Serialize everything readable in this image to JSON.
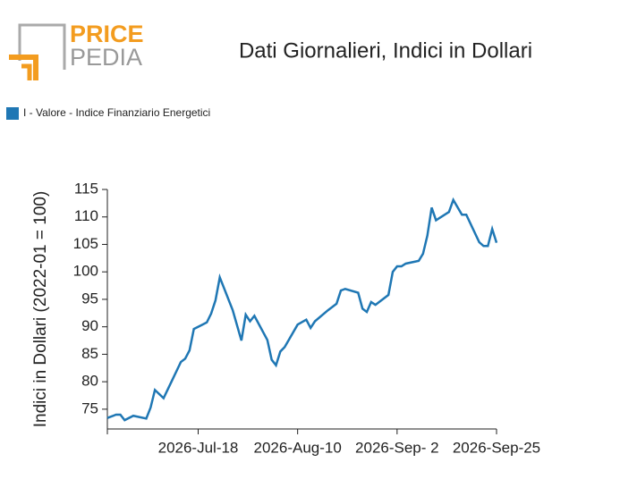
{
  "logo": {
    "top": "PRICE",
    "bottom": "PEDIA"
  },
  "chart_data": {
    "type": "line",
    "title": "Dati Giornalieri, Indici in Dollari",
    "y_label": "Indici in Dollari (2022-01 = 100)",
    "legend": "top-left",
    "x": [
      "2026-06-27",
      "2026-06-29",
      "2026-06-30",
      "2026-07-01",
      "2026-07-03",
      "2026-07-06",
      "2026-07-07",
      "2026-07-08",
      "2026-07-10",
      "2026-07-12",
      "2026-07-14",
      "2026-07-15",
      "2026-07-16",
      "2026-07-17",
      "2026-07-19",
      "2026-07-20",
      "2026-07-21",
      "2026-07-22",
      "2026-07-23",
      "2026-07-26",
      "2026-07-28",
      "2026-07-29",
      "2026-07-30",
      "2026-07-31",
      "2026-08-03",
      "2026-08-04",
      "2026-08-05",
      "2026-08-06",
      "2026-08-07",
      "2026-08-10",
      "2026-08-12",
      "2026-08-13",
      "2026-08-14",
      "2026-08-17",
      "2026-08-19",
      "2026-08-20",
      "2026-08-21",
      "2026-08-24",
      "2026-08-25",
      "2026-08-26",
      "2026-08-27",
      "2026-08-28",
      "2026-08-31",
      "2026-09-01",
      "2026-09-02",
      "2026-09-03",
      "2026-09-04",
      "2026-09-07",
      "2026-09-08",
      "2026-09-09",
      "2026-09-10",
      "2026-09-11",
      "2026-09-14",
      "2026-09-15",
      "2026-09-17",
      "2026-09-18",
      "2026-09-21",
      "2026-09-22",
      "2026-09-23",
      "2026-09-24",
      "2026-09-25"
    ],
    "series": [
      {
        "name": "I - Valore - Indice Finanziario Energetici",
        "color": "#1f77b4",
        "values": [
          73.4,
          74.0,
          74.0,
          73.0,
          73.8,
          73.3,
          75.3,
          78.5,
          77.0,
          80.3,
          83.6,
          84.2,
          85.7,
          89.6,
          90.4,
          90.8,
          92.4,
          94.8,
          99.0,
          93.0,
          87.5,
          92.2,
          91.0,
          92.0,
          87.6,
          84.0,
          83.0,
          85.5,
          86.3,
          90.4,
          91.3,
          89.8,
          91.0,
          93.0,
          94.2,
          96.6,
          96.9,
          96.2,
          93.3,
          92.7,
          94.5,
          94.0,
          95.8,
          100.0,
          101.0,
          101.0,
          101.5,
          102.0,
          103.3,
          106.6,
          111.7,
          109.4,
          110.9,
          113.1,
          110.4,
          110.4,
          105.4,
          104.7,
          104.7,
          107.8,
          105.3
        ]
      }
    ],
    "xlim": [
      "2026-06-27",
      "2026-09-25"
    ],
    "xticks": [
      {
        "value": "2026-07-18",
        "label": "2026-Jul-18"
      },
      {
        "value": "2026-08-10",
        "label": "2026-Aug-10"
      },
      {
        "value": "2026-09-02",
        "label": "2026-Sep- 2"
      },
      {
        "value": "2026-09-25",
        "label": "2026-Sep-25"
      }
    ],
    "ylim": [
      71.4,
      115
    ],
    "yticks": [
      75,
      80,
      85,
      90,
      95,
      100,
      105,
      110,
      115
    ],
    "grid": false
  }
}
